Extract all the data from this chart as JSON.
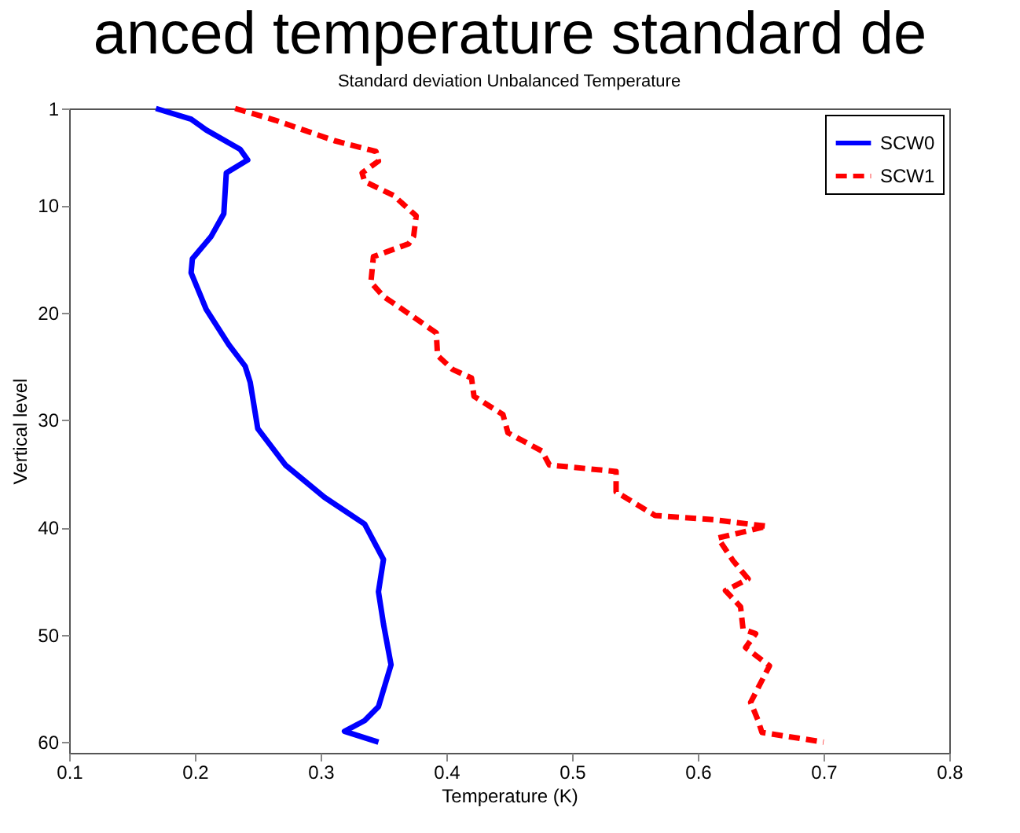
{
  "chart_data": {
    "type": "line",
    "title": "Standard deviation Unbalanced Temperature",
    "xlabel": "Temperature (K)",
    "ylabel": "Vertical level",
    "annotations": [
      "anced temperature standard de"
    ],
    "xlim": [
      0.1,
      0.8
    ],
    "xticks": [
      0.1,
      0.2,
      0.3,
      0.4,
      0.5,
      0.6,
      0.7,
      0.8
    ],
    "ylim": [
      61,
      1
    ],
    "yticks": [
      1,
      10,
      20,
      30,
      40,
      50,
      60
    ],
    "grid": false,
    "legend": "top right",
    "series": [
      {
        "name": "SCW0",
        "color": "#0000ff",
        "line_style": "solid",
        "x": [
          0.169,
          0.197,
          0.209,
          0.236,
          0.242,
          0.225,
          0.223,
          0.213,
          0.198,
          0.197,
          0.209,
          0.227,
          0.24,
          0.244,
          0.25,
          0.272,
          0.303,
          0.335,
          0.35,
          0.346,
          0.35,
          0.356,
          0.346,
          0.335,
          0.319,
          0.346
        ],
        "values": [
          1,
          2,
          3,
          4.8,
          5.8,
          7,
          10.8,
          12.9,
          15,
          16.3,
          19.7,
          23,
          25,
          26.5,
          30.8,
          34.2,
          37.2,
          39.7,
          43,
          46,
          49,
          52.8,
          56.7,
          58,
          59,
          60
        ]
      },
      {
        "name": "SCW1",
        "color": "#ff0000",
        "line_style": "dashed",
        "x": [
          0.232,
          0.264,
          0.311,
          0.344,
          0.346,
          0.333,
          0.335,
          0.358,
          0.376,
          0.374,
          0.37,
          0.342,
          0.34,
          0.35,
          0.37,
          0.392,
          0.393,
          0.405,
          0.42,
          0.422,
          0.445,
          0.449,
          0.476,
          0.482,
          0.535,
          0.535,
          0.566,
          0.613,
          0.655,
          0.616,
          0.628,
          0.64,
          0.622,
          0.634,
          0.636,
          0.646,
          0.638,
          0.657,
          0.642,
          0.648,
          0.651,
          0.7
        ],
        "values": [
          1,
          2.1,
          4,
          5,
          5.9,
          7,
          7.8,
          9.1,
          11,
          12.9,
          13.6,
          14.8,
          17.2,
          18.5,
          20.1,
          21.9,
          24,
          25.3,
          26.1,
          27.8,
          29.5,
          31.2,
          32.9,
          34.2,
          34.8,
          36.7,
          38.9,
          39.3,
          39.9,
          41,
          43.1,
          44.8,
          45.9,
          47.4,
          49.5,
          49.9,
          51.2,
          52.9,
          56.3,
          58,
          59.1,
          60
        ]
      }
    ]
  }
}
